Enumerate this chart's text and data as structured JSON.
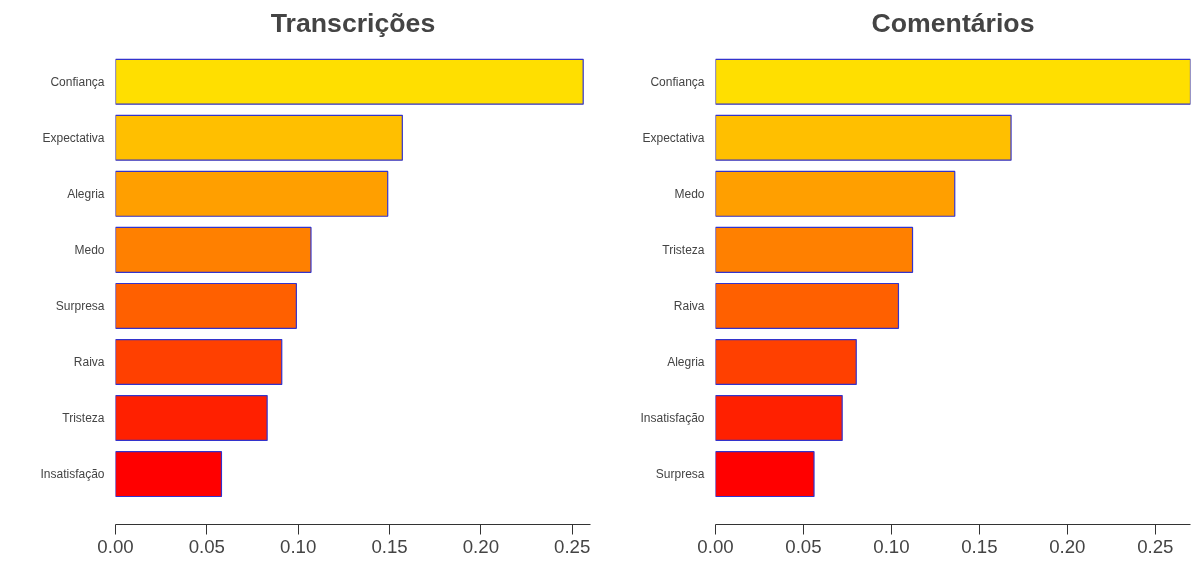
{
  "chart_data": [
    {
      "type": "bar",
      "orientation": "horizontal",
      "title": "Transcrições",
      "categories": [
        "Confiança",
        "Expectativa",
        "Alegria",
        "Medo",
        "Surpresa",
        "Raiva",
        "Tristeza",
        "Insatisfação"
      ],
      "values": [
        0.256,
        0.157,
        0.149,
        0.107,
        0.099,
        0.091,
        0.083,
        0.058
      ],
      "colors": [
        "#ffdf00",
        "#ffbf00",
        "#ff9f00",
        "#ff8000",
        "#ff6000",
        "#ff4000",
        "#ff2000",
        "#ff0000"
      ],
      "xlim": [
        0,
        0.26
      ],
      "xticks": [
        {
          "value": 0,
          "label": "0.00"
        },
        0.05,
        {
          "value": 0.1,
          "label": "0.10"
        },
        0.15,
        {
          "value": 0.2,
          "label": "0.20"
        },
        0.25
      ],
      "grid": false
    },
    {
      "type": "bar",
      "orientation": "horizontal",
      "title": "Comentários",
      "categories": [
        "Confiança",
        "Expectativa",
        "Medo",
        "Tristeza",
        "Raiva",
        "Alegria",
        "Insatisfação",
        "Surpresa"
      ],
      "values": [
        0.27,
        0.168,
        0.136,
        0.112,
        0.104,
        0.08,
        0.072,
        0.056
      ],
      "colors": [
        "#ffdf00",
        "#ffbf00",
        "#ff9f00",
        "#ff8000",
        "#ff6000",
        "#ff4000",
        "#ff2000",
        "#ff0000"
      ],
      "xlim": [
        0,
        0.27
      ],
      "xticks": [
        {
          "value": 0,
          "label": "0.00"
        },
        0.05,
        {
          "value": 0.1,
          "label": "0.10"
        },
        0.15,
        {
          "value": 0.2,
          "label": "0.20"
        },
        0.25
      ],
      "grid": false
    }
  ]
}
